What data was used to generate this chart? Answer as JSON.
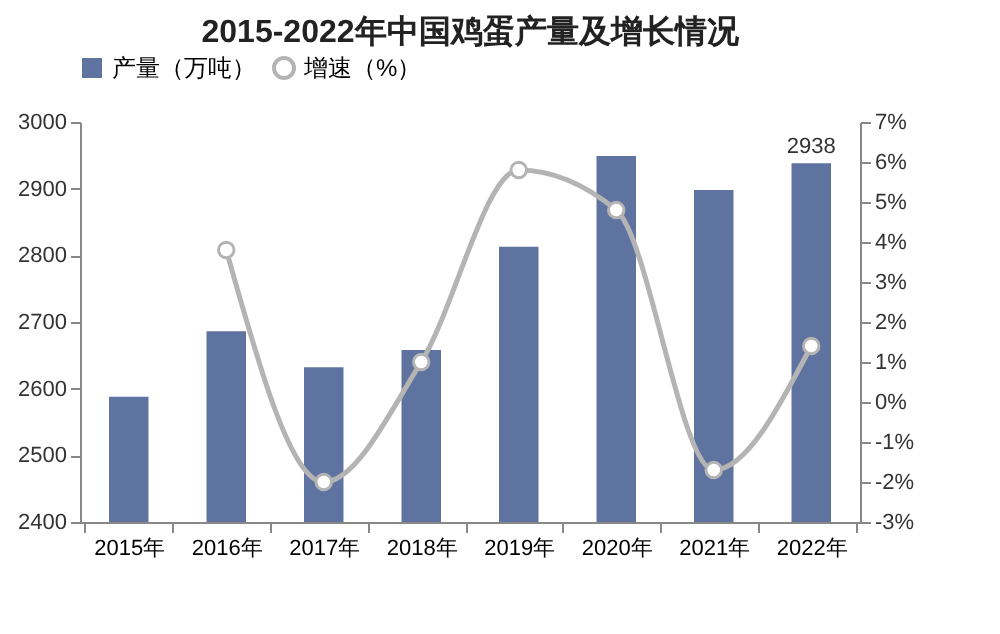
{
  "chart_data": {
    "type": "bar",
    "title": "2015-2022年中国鸡蛋产量及增长情况",
    "categories": [
      "2015年",
      "2016年",
      "2017年",
      "2018年",
      "2019年",
      "2020年",
      "2021年",
      "2022年"
    ],
    "series": [
      {
        "name": "产量（万吨）",
        "color": "#5f73a0",
        "values": [
          2588,
          2686,
          2632,
          2658,
          2813,
          2949,
          2898,
          2938
        ],
        "value_labels": [
          null,
          null,
          null,
          null,
          null,
          null,
          null,
          "2938"
        ]
      },
      {
        "name": "增速（%）",
        "type": "line",
        "axis": "y2",
        "color": "#b4b4b4",
        "marker": "circle",
        "values": [
          null,
          3.8,
          -2.0,
          1.0,
          5.8,
          4.8,
          -1.7,
          1.4
        ]
      }
    ],
    "ylim": [
      2400,
      3000
    ],
    "yticks": [
      2400,
      2500,
      2600,
      2700,
      2800,
      2900,
      3000
    ],
    "y2lim": [
      -3,
      7
    ],
    "y2ticks": [
      {
        "value": -3,
        "label": "-3%"
      },
      {
        "value": -2,
        "label": "-2%"
      },
      {
        "value": -1,
        "label": "-1%"
      },
      {
        "value": 0,
        "label": "0%"
      },
      {
        "value": 1,
        "label": "1%"
      },
      {
        "value": 2,
        "label": "2%"
      },
      {
        "value": 3,
        "label": "3%"
      },
      {
        "value": 4,
        "label": "4%"
      },
      {
        "value": 5,
        "label": "5%"
      },
      {
        "value": 6,
        "label": "6%"
      },
      {
        "value": 7,
        "label": "7%"
      }
    ],
    "legend": "top",
    "grid": false
  }
}
